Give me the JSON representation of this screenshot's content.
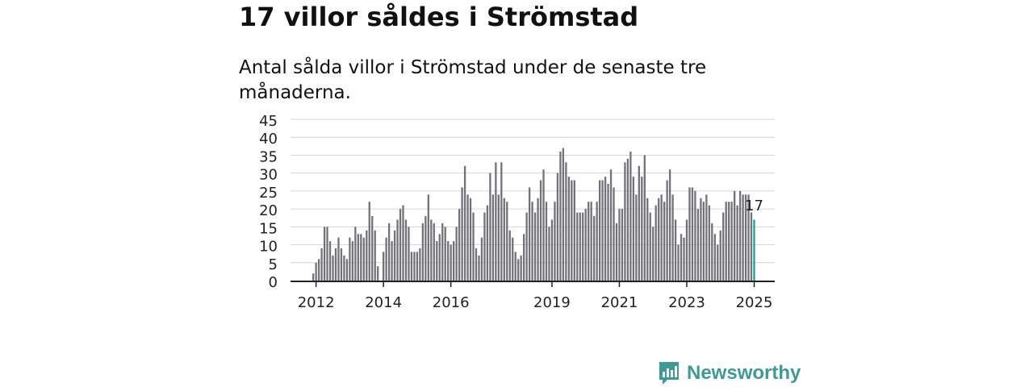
{
  "header": {
    "title": "17 villor såldes i Strömstad",
    "subtitle": "Antal sålda villor i Strömstad under de senaste tre månaderna."
  },
  "chart_data": {
    "type": "bar",
    "title": "17 villor såldes i Strömstad",
    "subtitle": "Antal sålda villor i Strömstad under de senaste tre månaderna.",
    "xlabel": "",
    "ylabel": "",
    "ylim": [
      0,
      45
    ],
    "yticks": [
      0,
      5,
      10,
      15,
      20,
      25,
      30,
      35,
      40,
      45
    ],
    "xticks": [
      {
        "label": "2012",
        "index": 1
      },
      {
        "label": "2014",
        "index": 25
      },
      {
        "label": "2016",
        "index": 49
      },
      {
        "label": "2019",
        "index": 85
      },
      {
        "label": "2021",
        "index": 109
      },
      {
        "label": "2023",
        "index": 133
      },
      {
        "label": "2025",
        "index": 157
      }
    ],
    "grid": true,
    "bar_color": "#727279",
    "highlight_color": "#1f9e9b",
    "highlight_label": "17",
    "start": "2011-12",
    "end": "2025-03",
    "values": [
      2,
      5,
      6,
      9,
      15,
      15,
      11,
      7,
      9,
      12,
      9,
      7,
      6,
      12,
      11,
      15,
      13,
      13,
      12,
      14,
      22,
      18,
      14,
      4,
      0,
      8,
      12,
      16,
      11,
      14,
      17,
      20,
      21,
      17,
      15,
      8,
      8,
      8,
      9,
      16,
      18,
      24,
      17,
      16,
      11,
      13,
      16,
      15,
      11,
      10,
      11,
      15,
      20,
      26,
      32,
      24,
      23,
      19,
      9,
      7,
      12,
      19,
      21,
      30,
      24,
      33,
      24,
      33,
      23,
      22,
      14,
      12,
      8,
      6,
      7,
      13,
      19,
      26,
      22,
      19,
      23,
      28,
      31,
      22,
      15,
      17,
      22,
      30,
      36,
      37,
      33,
      29,
      28,
      28,
      19,
      19,
      19,
      20,
      22,
      22,
      18,
      22,
      28,
      28,
      29,
      27,
      31,
      26,
      16,
      20,
      20,
      33,
      34,
      36,
      29,
      24,
      32,
      29,
      35,
      23,
      19,
      15,
      21,
      23,
      24,
      22,
      28,
      31,
      24,
      17,
      10,
      13,
      12,
      17,
      26,
      26,
      25,
      20,
      23,
      22,
      24,
      21,
      16,
      13,
      10,
      14,
      19,
      22,
      22,
      22,
      25,
      21,
      25,
      24,
      24,
      24,
      19,
      17
    ]
  },
  "brand": {
    "name": "Newsworthy",
    "color": "#3d9a96",
    "icon": "newsworthy-logo-icon"
  }
}
